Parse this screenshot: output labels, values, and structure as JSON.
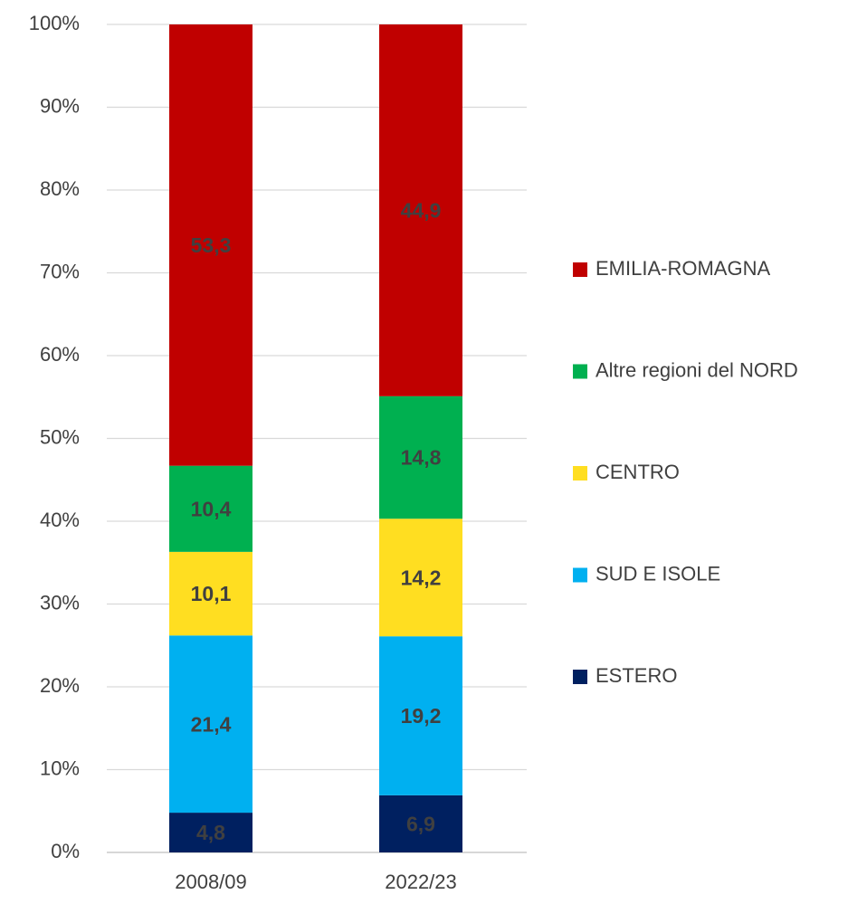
{
  "chart_data": {
    "type": "stacked_bar",
    "categories": [
      "2008/09",
      "2022/23"
    ],
    "series": [
      {
        "name": "ESTERO",
        "color": "#002060",
        "values": [
          4.8,
          6.9
        ],
        "value_labels": [
          "4,8",
          "6,9"
        ]
      },
      {
        "name": "SUD E ISOLE",
        "color": "#00b0f0",
        "values": [
          21.4,
          19.2
        ],
        "value_labels": [
          "21,4",
          "19,2"
        ]
      },
      {
        "name": "CENTRO",
        "color": "#ffde21",
        "values": [
          10.1,
          14.2
        ],
        "value_labels": [
          "10,1",
          "14,2"
        ]
      },
      {
        "name": "Altre regioni del NORD",
        "color": "#00b050",
        "values": [
          10.4,
          14.8
        ],
        "value_labels": [
          "10,4",
          "14,8"
        ]
      },
      {
        "name": "EMILIA-ROMAGNA",
        "color": "#c00000",
        "values": [
          53.3,
          44.9
        ],
        "value_labels": [
          "53,3",
          "44,9"
        ]
      }
    ],
    "ylim": [
      0,
      100
    ],
    "yticks": [
      {
        "value": 0,
        "label": "0%"
      },
      {
        "value": 10,
        "label": "10%"
      },
      {
        "value": 20,
        "label": "20%"
      },
      {
        "value": 30,
        "label": "30%"
      },
      {
        "value": 40,
        "label": "40%"
      },
      {
        "value": 50,
        "label": "50%"
      },
      {
        "value": 60,
        "label": "60%"
      },
      {
        "value": 70,
        "label": "70%"
      },
      {
        "value": 80,
        "label": "80%"
      },
      {
        "value": 90,
        "label": "90%"
      },
      {
        "value": 100,
        "label": "100%"
      }
    ],
    "grid": true,
    "legend": "right"
  }
}
